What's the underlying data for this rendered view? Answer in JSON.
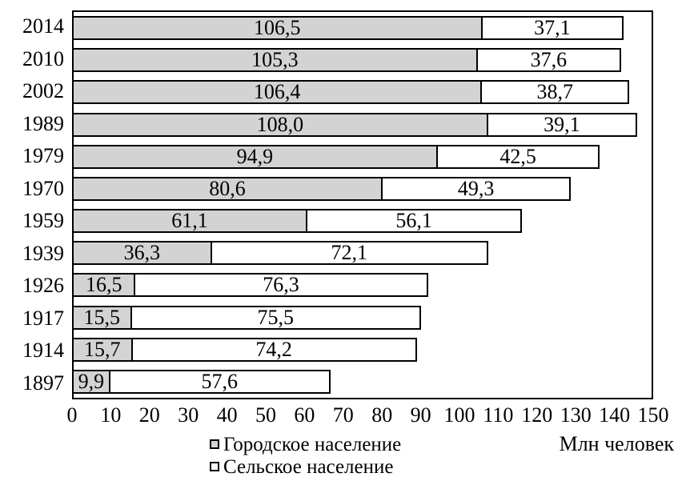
{
  "chart_data": {
    "type": "bar",
    "orientation": "horizontal",
    "stacked": true,
    "title": "",
    "categories": [
      "2014",
      "2010",
      "2002",
      "1989",
      "1979",
      "1970",
      "1959",
      "1939",
      "1926",
      "1917",
      "1914",
      "1897"
    ],
    "series": [
      {
        "name": "Городское население",
        "color": "#d3d3d3",
        "values": [
          106.5,
          105.3,
          106.4,
          108.0,
          94.9,
          80.6,
          61.1,
          36.3,
          16.5,
          15.5,
          15.7,
          9.9
        ]
      },
      {
        "name": "Сельское население",
        "color": "#ffffff",
        "values": [
          37.1,
          37.6,
          38.7,
          39.1,
          42.5,
          49.3,
          56.1,
          72.1,
          76.3,
          75.5,
          74.2,
          57.6
        ]
      }
    ],
    "xlim": [
      0,
      150
    ],
    "xticks": [
      0,
      10,
      20,
      30,
      40,
      50,
      60,
      70,
      80,
      90,
      100,
      110,
      120,
      130,
      140,
      150
    ],
    "xlabel": "Млн человек",
    "ylabel": "",
    "decimal_separator": ",",
    "value_labels": "inside-segments",
    "legend_position": "bottom-center",
    "grid": false
  },
  "legend": {
    "items": [
      {
        "label": "Городское население",
        "fill": "#d3d3d3"
      },
      {
        "label": "Сельское население",
        "fill": "#ffffff"
      }
    ]
  },
  "axis": {
    "unit_label": "Млн человек"
  },
  "colors": {
    "bar_border": "#000000",
    "plot_border": "#000000",
    "background": "#ffffff",
    "text": "#000000"
  }
}
